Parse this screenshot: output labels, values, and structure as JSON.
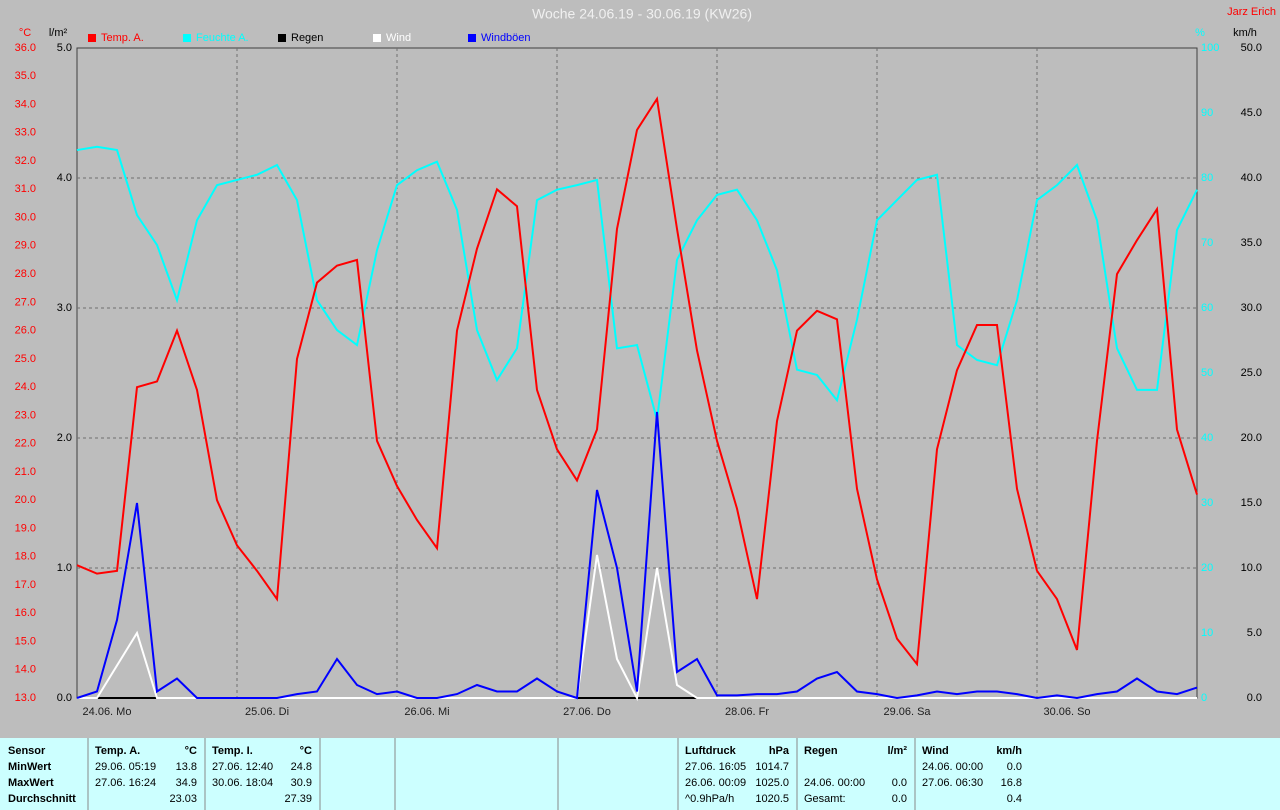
{
  "chart_data": {
    "type": "line",
    "title": "Woche 24.06.19 - 30.06.19 (KW26)",
    "author": "Jarz Erich",
    "xlim": [
      0,
      168
    ],
    "xticks": [
      {
        "value": 0,
        "label": "24.06. Mo"
      },
      {
        "value": 24,
        "label": "25.06. Di"
      },
      {
        "value": 48,
        "label": "26.06. Mi"
      },
      {
        "value": 72,
        "label": "27.06. Do"
      },
      {
        "value": 96,
        "label": "28.06. Fr"
      },
      {
        "value": 120,
        "label": "29.06. Sa"
      },
      {
        "value": 144,
        "label": "30.06. So"
      }
    ],
    "x": [
      0,
      3,
      6,
      9,
      12,
      15,
      18,
      21,
      24,
      27,
      30,
      33,
      36,
      39,
      42,
      45,
      48,
      51,
      54,
      57,
      60,
      63,
      66,
      69,
      72,
      75,
      78,
      81,
      84,
      87,
      90,
      93,
      96,
      99,
      102,
      105,
      108,
      111,
      114,
      117,
      120,
      123,
      126,
      129,
      132,
      135,
      138,
      141,
      144,
      147,
      150,
      153,
      156,
      159,
      162,
      165,
      168
    ],
    "grid": true,
    "axes": {
      "temp": {
        "label": "°C",
        "color": "#ff0000",
        "lim": [
          13,
          36
        ],
        "ticks": [
          {
            "value": 13,
            "label": "13.0"
          },
          {
            "value": 14,
            "label": "14.0"
          },
          {
            "value": 15,
            "label": "15.0"
          },
          {
            "value": 16,
            "label": "16.0"
          },
          {
            "value": 17,
            "label": "17.0"
          },
          {
            "value": 18,
            "label": "18.0"
          },
          {
            "value": 19,
            "label": "19.0"
          },
          {
            "value": 20,
            "label": "20.0"
          },
          {
            "value": 21,
            "label": "21.0"
          },
          {
            "value": 22,
            "label": "22.0"
          },
          {
            "value": 23,
            "label": "23.0"
          },
          {
            "value": 24,
            "label": "24.0"
          },
          {
            "value": 25,
            "label": "25.0"
          },
          {
            "value": 26,
            "label": "26.0"
          },
          {
            "value": 27,
            "label": "27.0"
          },
          {
            "value": 28,
            "label": "28.0"
          },
          {
            "value": 29,
            "label": "29.0"
          },
          {
            "value": 30,
            "label": "30.0"
          },
          {
            "value": 31,
            "label": "31.0"
          },
          {
            "value": 32,
            "label": "32.0"
          },
          {
            "value": 33,
            "label": "33.0"
          },
          {
            "value": 34,
            "label": "34.0"
          },
          {
            "value": 35,
            "label": "35.0"
          },
          {
            "value": 36,
            "label": "36.0"
          }
        ]
      },
      "rain": {
        "label": "l/m²",
        "color": "#000000",
        "lim": [
          0,
          5
        ],
        "ticks": [
          {
            "value": 0,
            "label": "0.0"
          },
          {
            "value": 1,
            "label": "1.0"
          },
          {
            "value": 2,
            "label": "2.0"
          },
          {
            "value": 3,
            "label": "3.0"
          },
          {
            "value": 4,
            "label": "4.0"
          },
          {
            "value": 5,
            "label": "5.0"
          }
        ]
      },
      "humidity": {
        "label": "%",
        "color": "#00ffff",
        "lim": [
          0,
          100
        ],
        "ticks": [
          0,
          10,
          20,
          30,
          40,
          50,
          60,
          70,
          80,
          90,
          100
        ]
      },
      "wind": {
        "label": "km/h",
        "color": "#000000",
        "lim": [
          0,
          50
        ],
        "ticks": [
          {
            "value": 0,
            "label": "0.0"
          },
          {
            "value": 5,
            "label": "5.0"
          },
          {
            "value": 10,
            "label": "10.0"
          },
          {
            "value": 15,
            "label": "15.0"
          },
          {
            "value": 20,
            "label": "20.0"
          },
          {
            "value": 25,
            "label": "25.0"
          },
          {
            "value": 30,
            "label": "30.0"
          },
          {
            "value": 35,
            "label": "35.0"
          },
          {
            "value": 40,
            "label": "40.0"
          },
          {
            "value": 45,
            "label": "45.0"
          },
          {
            "value": 50,
            "label": "50.0"
          }
        ]
      }
    },
    "series": [
      {
        "name": "Temp. A.",
        "color": "#ff0000",
        "axis": "temp",
        "values": [
          17.7,
          17.4,
          17.5,
          24.0,
          24.2,
          26.0,
          23.9,
          20.0,
          18.4,
          17.5,
          16.5,
          25.0,
          27.7,
          28.3,
          28.5,
          22.1,
          20.5,
          19.3,
          18.3,
          26.0,
          28.9,
          31.0,
          30.4,
          23.9,
          21.8,
          20.7,
          22.5,
          29.6,
          33.1,
          34.2,
          29.6,
          25.3,
          22.1,
          19.7,
          16.5,
          22.8,
          26.0,
          26.7,
          26.4,
          20.4,
          17.2,
          15.1,
          14.2,
          21.8,
          24.6,
          26.2,
          26.2,
          20.4,
          17.5,
          16.5,
          14.7,
          22.1,
          28.0,
          29.2,
          30.3,
          22.5,
          20.2
        ]
      },
      {
        "name": "Feuchte A.",
        "color": "#00ffff",
        "axis": "humidity",
        "values": [
          84.3,
          84.8,
          84.3,
          74.3,
          69.7,
          61.2,
          73.5,
          78.9,
          79.7,
          80.5,
          82.0,
          76.6,
          61.2,
          56.6,
          54.3,
          68.9,
          78.9,
          81.2,
          82.5,
          75.1,
          56.6,
          48.9,
          53.8,
          76.6,
          78.2,
          78.9,
          79.7,
          53.8,
          54.3,
          42.8,
          67.4,
          73.5,
          77.4,
          78.2,
          73.5,
          65.8,
          50.5,
          49.7,
          45.8,
          58.2,
          73.5,
          76.6,
          79.7,
          80.5,
          54.3,
          52.0,
          51.2,
          61.2,
          76.6,
          78.9,
          82.0,
          73.5,
          53.8,
          47.4,
          47.4,
          72.0,
          78.2
        ]
      },
      {
        "name": "Regen",
        "color": "#000000",
        "axis": "rain",
        "values": [
          0,
          0,
          0,
          0,
          0,
          0,
          0,
          0,
          0,
          0,
          0,
          0,
          0,
          0,
          0,
          0,
          0,
          0,
          0,
          0,
          0,
          0,
          0,
          0,
          0,
          0,
          0,
          0,
          0,
          0,
          0,
          0,
          0,
          0,
          0,
          0,
          0,
          0,
          0,
          0,
          0,
          0,
          0,
          0,
          0,
          0,
          0,
          0,
          0,
          0,
          0,
          0,
          0,
          0,
          0,
          0,
          0
        ]
      },
      {
        "name": "Wind",
        "color": "#ffffff",
        "axis": "wind",
        "values": [
          0,
          0,
          2.5,
          5,
          0,
          0,
          0,
          0,
          0,
          0,
          0,
          0,
          0,
          0,
          0,
          0,
          0,
          0,
          0,
          0,
          0,
          0,
          0,
          0,
          0,
          0,
          11,
          3,
          0,
          10,
          1,
          0,
          0,
          0,
          0,
          0,
          0,
          0,
          0,
          0,
          0,
          0,
          0,
          0,
          0,
          0,
          0,
          0,
          0,
          0,
          0,
          0,
          0,
          0,
          0,
          0,
          0
        ]
      },
      {
        "name": "Windböen",
        "color": "#0000ff",
        "axis": "wind",
        "values": [
          0,
          0.5,
          6,
          15,
          0.5,
          1.5,
          0,
          0,
          0,
          0,
          0,
          0.3,
          0.5,
          3,
          1,
          0.3,
          0.5,
          0,
          0,
          0.3,
          1,
          0.5,
          0.5,
          1.5,
          0.5,
          0,
          16,
          10,
          0.5,
          22,
          2,
          3,
          0.2,
          0.2,
          0.3,
          0.3,
          0.5,
          1.5,
          2,
          0.5,
          0.3,
          0,
          0.2,
          0.5,
          0.3,
          0.5,
          0.5,
          0.3,
          0,
          0.2,
          0,
          0.3,
          0.5,
          1.5,
          0.5,
          0.3,
          0.8
        ]
      }
    ]
  },
  "stats_table": {
    "labels": [
      "Sensor",
      "MinWert",
      "MaxWert",
      "Durchschnitt"
    ],
    "groups": [
      {
        "name": "Temp. A.",
        "unit": "°C",
        "rows": [
          [
            "29.06.  05:19",
            "13.8"
          ],
          [
            "27.06.  16:24",
            "34.9"
          ],
          [
            "23.03"
          ]
        ]
      },
      {
        "name": "Temp. I.",
        "unit": "°C",
        "rows": [
          [
            "27.06.  12:40",
            "24.8"
          ],
          [
            "30.06.  18:04",
            "30.9"
          ],
          [
            "27.39"
          ]
        ]
      },
      {
        "name": "Luftdruck",
        "unit": "hPa",
        "rows": [
          [
            "27.06.  16:05",
            "1014.7"
          ],
          [
            "26.06.  00:09",
            "1025.0"
          ],
          [
            "^0.9hPa/h",
            "1020.5"
          ]
        ]
      },
      {
        "name": "Regen",
        "unit": "l/m²",
        "rows": [
          null,
          [
            "24.06.  00:00",
            "0.0"
          ],
          [
            "Gesamt:",
            "0.0"
          ]
        ]
      },
      {
        "name": "Wind",
        "unit": "km/h",
        "rows": [
          [
            "24.06.  00:00",
            "0.0"
          ],
          [
            "27.06.  06:30",
            "16.8"
          ],
          [
            "0.4"
          ]
        ]
      }
    ]
  }
}
